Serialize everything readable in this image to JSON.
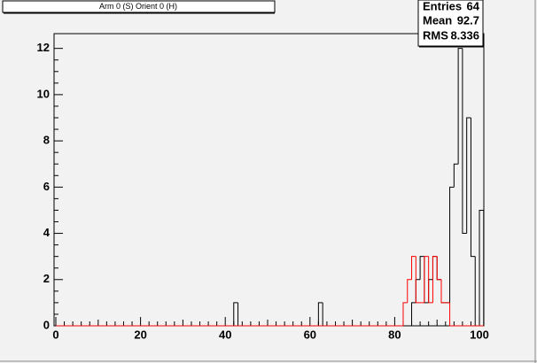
{
  "chart_data": {
    "type": "histogram",
    "title": "Arm 0 (S) Orient 0 (H)",
    "bins": [
      0,
      1,
      2,
      3,
      4,
      5,
      6,
      7,
      8,
      9,
      10,
      11,
      12,
      13,
      14,
      15,
      16,
      17,
      18,
      19,
      20,
      21,
      22,
      23,
      24,
      25,
      26,
      27,
      28,
      29,
      30,
      31,
      32,
      33,
      34,
      35,
      36,
      37,
      38,
      39,
      40,
      41,
      42,
      43,
      44,
      45,
      46,
      47,
      48,
      49,
      50,
      51,
      52,
      53,
      54,
      55,
      56,
      57,
      58,
      59,
      60,
      61,
      62,
      63,
      64,
      65,
      66,
      67,
      68,
      69,
      70,
      71,
      72,
      73,
      74,
      75,
      76,
      77,
      78,
      79,
      80,
      81,
      82,
      83,
      84,
      85,
      86,
      87,
      88,
      89,
      90,
      91,
      92,
      93,
      94,
      95,
      96,
      97,
      98,
      99,
      100,
      101
    ],
    "series": [
      {
        "color": "#000000",
        "values": [
          0,
          0,
          0,
          0,
          0,
          0,
          0,
          0,
          0,
          0,
          0,
          0,
          0,
          0,
          0,
          0,
          0,
          0,
          0,
          0,
          0,
          0,
          0,
          0,
          0,
          0,
          0,
          0,
          0,
          0,
          0,
          0,
          0,
          0,
          0,
          0,
          0,
          0,
          0,
          0,
          0,
          0,
          1,
          0,
          0,
          0,
          0,
          0,
          0,
          0,
          0,
          0,
          0,
          0,
          0,
          0,
          0,
          0,
          0,
          0,
          0,
          0,
          1,
          0,
          0,
          0,
          0,
          0,
          0,
          0,
          0,
          0,
          0,
          0,
          0,
          0,
          0,
          0,
          0,
          0,
          0,
          0,
          0,
          0,
          1,
          2,
          3,
          1,
          2,
          3,
          2,
          1,
          1,
          6,
          7,
          12,
          4,
          9,
          3,
          0,
          5
        ]
      },
      {
        "color": "#ff0000",
        "values": [
          0,
          0,
          0,
          0,
          0,
          0,
          0,
          0,
          0,
          0,
          0,
          0,
          0,
          0,
          0,
          0,
          0,
          0,
          0,
          0,
          0,
          0,
          0,
          0,
          0,
          0,
          0,
          0,
          0,
          0,
          0,
          0,
          0,
          0,
          0,
          0,
          0,
          0,
          0,
          0,
          0,
          0,
          0,
          0,
          0,
          0,
          0,
          0,
          0,
          0,
          0,
          0,
          0,
          0,
          0,
          0,
          0,
          0,
          0,
          0,
          0,
          0,
          0,
          0,
          0,
          0,
          0,
          0,
          0,
          0,
          0,
          0,
          0,
          0,
          0,
          0,
          0,
          0,
          0,
          0,
          0,
          0,
          1,
          2,
          3,
          1,
          1,
          3,
          1,
          3,
          2,
          1,
          1,
          0,
          0,
          0,
          0,
          0,
          0,
          0,
          0
        ]
      }
    ],
    "xlim": [
      0,
      101
    ],
    "xticks": [
      0,
      20,
      40,
      60,
      80,
      100
    ],
    "ylim": [
      0,
      12.6
    ],
    "yticks": [
      0,
      2,
      4,
      6,
      8,
      10,
      12
    ],
    "stats": {
      "entries_label": "Entries",
      "entries": 64,
      "mean_label": "Mean",
      "mean": 92.7,
      "rms_label": "RMS",
      "rms": 8.336
    }
  }
}
